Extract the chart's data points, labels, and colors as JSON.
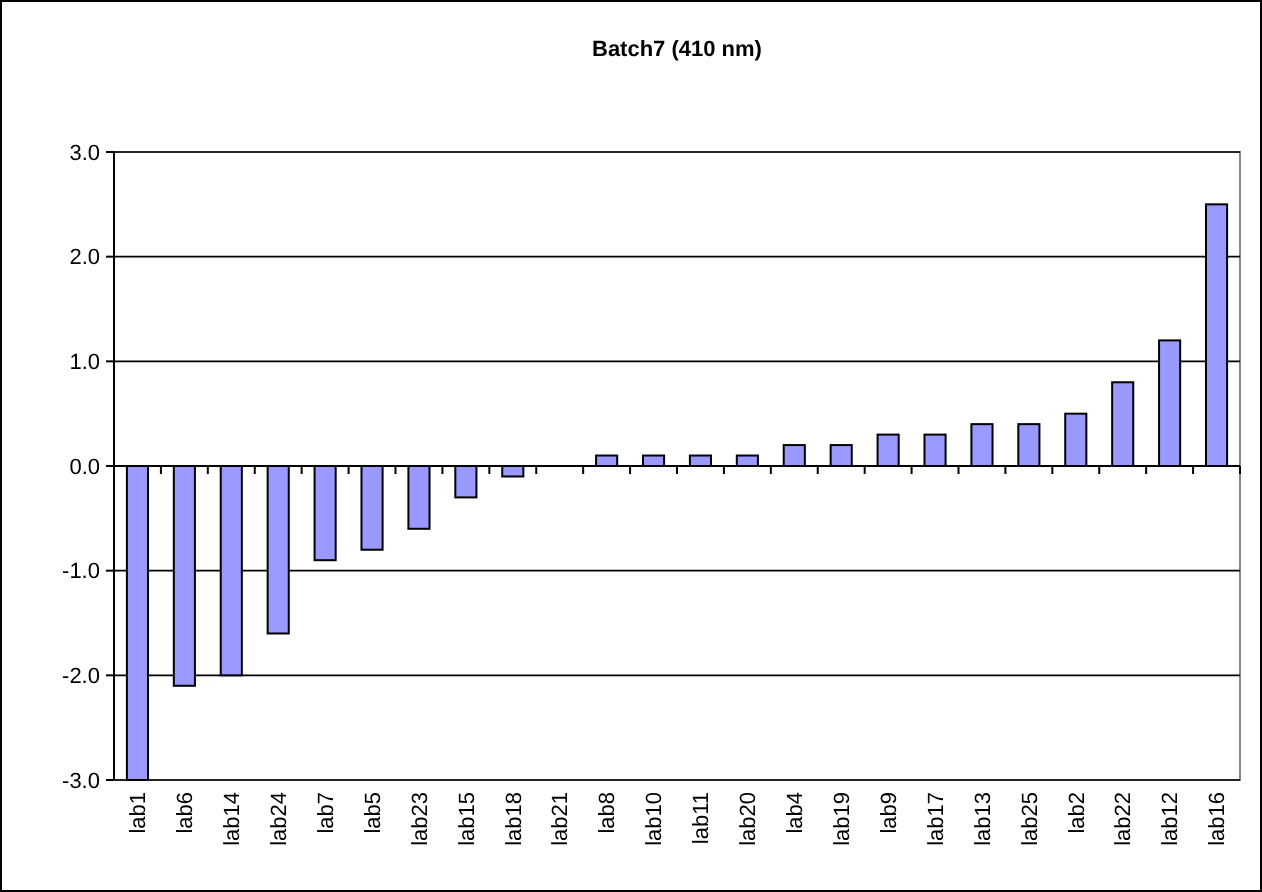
{
  "chart_data": {
    "type": "bar",
    "title": "Batch7 (410 nm)",
    "categories": [
      "lab1",
      "lab6",
      "lab14",
      "lab24",
      "lab7",
      "lab5",
      "lab23",
      "lab15",
      "lab18",
      "lab21",
      "lab8",
      "lab10",
      "lab11",
      "lab20",
      "lab4",
      "lab19",
      "lab9",
      "lab17",
      "lab13",
      "lab25",
      "lab2",
      "lab22",
      "lab12",
      "lab16"
    ],
    "values": [
      -3.0,
      -2.1,
      -2.0,
      -1.6,
      -0.9,
      -0.8,
      -0.6,
      -0.3,
      -0.1,
      0,
      0.1,
      0.1,
      0.1,
      0.1,
      0.2,
      0.2,
      0.3,
      0.3,
      0.4,
      0.4,
      0.5,
      0.8,
      1.2,
      2.5
    ],
    "color": "#9999ff",
    "ylim": [
      -3,
      3
    ],
    "yticks": [
      {
        "value": -3,
        "label": "-3.0"
      },
      {
        "value": -2,
        "label": "-2.0"
      },
      {
        "value": -1,
        "label": "-1.0"
      },
      {
        "value": 0,
        "label": "0.0"
      },
      {
        "value": 1,
        "label": "1.0"
      },
      {
        "value": 2,
        "label": "2.0"
      },
      {
        "value": 3,
        "label": "3.0"
      }
    ],
    "grid": "y"
  }
}
